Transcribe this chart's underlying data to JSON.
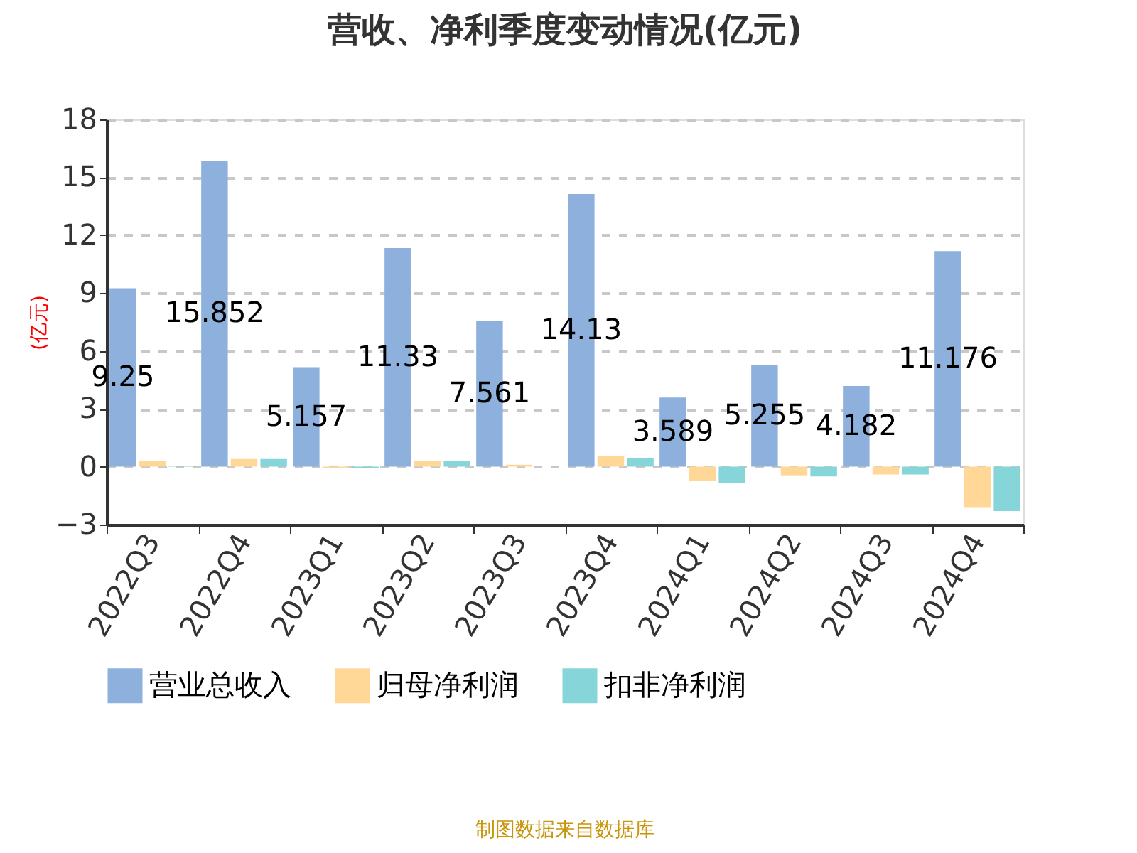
{
  "chart_data": {
    "type": "bar",
    "title": "营收、净利季度变动情况(亿元)",
    "ylabel": "(亿元)",
    "categories": [
      "2022Q3",
      "2022Q4",
      "2023Q1",
      "2023Q2",
      "2023Q3",
      "2023Q4",
      "2024Q1",
      "2024Q2",
      "2024Q3",
      "2024Q4"
    ],
    "series": [
      {
        "name": "营业总收入",
        "color": "#8eb0dc",
        "values": [
          9.25,
          15.852,
          5.157,
          11.33,
          7.561,
          14.13,
          3.589,
          5.255,
          4.182,
          11.176
        ],
        "value_labels": [
          "9.25",
          "15.852",
          "5.157",
          "11.33",
          "7.561",
          "14.13",
          "3.589",
          "5.255",
          "4.182",
          "11.176"
        ]
      },
      {
        "name": "归母净利润",
        "color": "#ffd898",
        "values": [
          0.3,
          0.4,
          -0.05,
          0.3,
          0.1,
          0.55,
          -0.75,
          -0.45,
          -0.4,
          -2.1
        ]
      },
      {
        "name": "扣非净利润",
        "color": "#86d5d8",
        "values": [
          0.05,
          0.4,
          -0.08,
          0.3,
          null,
          0.45,
          -0.85,
          -0.5,
          -0.4,
          -2.3
        ]
      }
    ],
    "ylim": [
      -3,
      18
    ],
    "yticks": [
      -3,
      0,
      3,
      6,
      9,
      12,
      15,
      18
    ],
    "grid": "y",
    "legend": "bottom",
    "annotations": [
      "制图数据来自数据库"
    ]
  }
}
